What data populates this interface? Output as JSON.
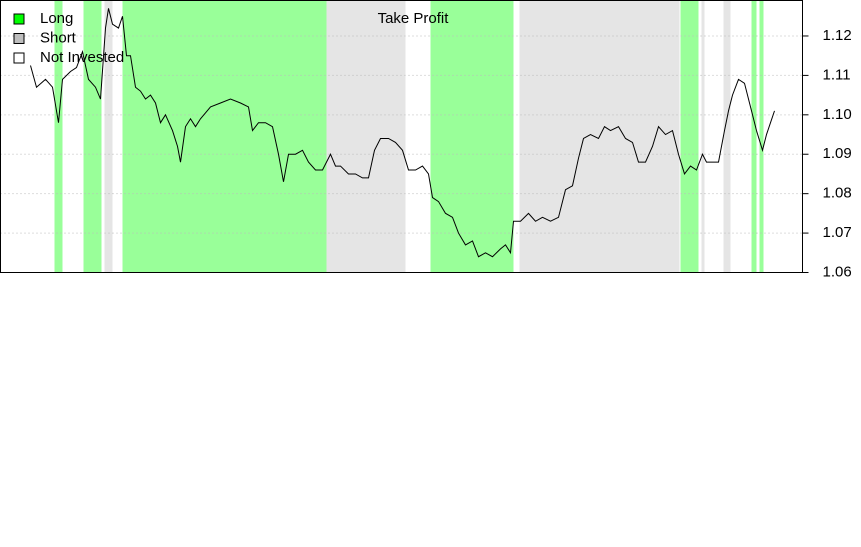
{
  "chart_data": {
    "type": "line",
    "annotation": "Take Profit",
    "legend": [
      {
        "name": "Long",
        "color": "#00ff00"
      },
      {
        "name": "Short",
        "color": "#bebebe"
      },
      {
        "name": "Not Invested",
        "color": "#ffffff"
      }
    ],
    "regions": [
      {
        "legend": 0,
        "start": 54,
        "end": 62
      },
      {
        "legend": 0,
        "start": 83,
        "end": 101
      },
      {
        "legend": 1,
        "start": 104,
        "end": 112
      },
      {
        "legend": 0,
        "start": 122,
        "end": 326
      },
      {
        "legend": 1,
        "start": 326,
        "end": 405
      },
      {
        "legend": 0,
        "start": 430,
        "end": 513
      },
      {
        "legend": 1,
        "start": 519,
        "end": 679
      },
      {
        "legend": 0,
        "start": 680,
        "end": 698
      },
      {
        "legend": 1,
        "start": 701,
        "end": 704
      },
      {
        "legend": 1,
        "start": 723,
        "end": 730
      },
      {
        "legend": 0,
        "start": 751,
        "end": 756
      },
      {
        "legend": 0,
        "start": 759,
        "end": 763
      }
    ],
    "x": [
      30,
      36,
      45,
      52,
      58,
      62,
      70,
      76,
      82,
      88,
      95,
      100,
      105,
      108,
      112,
      118,
      122,
      126,
      130,
      135,
      140,
      145,
      150,
      155,
      160,
      165,
      172,
      177,
      180,
      185,
      190,
      195,
      200,
      210,
      220,
      230,
      240,
      248,
      252,
      258,
      265,
      272,
      278,
      283,
      288,
      295,
      302,
      308,
      315,
      322,
      330,
      335,
      340,
      348,
      355,
      362,
      368,
      374,
      380,
      388,
      395,
      402,
      408,
      415,
      422,
      428,
      432,
      438,
      445,
      452,
      458,
      465,
      472,
      478,
      485,
      492,
      500,
      505,
      510,
      513,
      520,
      528,
      535,
      542,
      550,
      558,
      565,
      572,
      578,
      583,
      590,
      598,
      604,
      610,
      618,
      625,
      632,
      638,
      645,
      652,
      658,
      665,
      672,
      678,
      684,
      690,
      696,
      702,
      706,
      712,
      718,
      724,
      728,
      732,
      738,
      744,
      750,
      756,
      762,
      766,
      770,
      774
    ],
    "values": [
      1.1125,
      1.107,
      1.109,
      1.107,
      1.098,
      1.109,
      1.111,
      1.112,
      1.116,
      1.109,
      1.107,
      1.104,
      1.122,
      1.127,
      1.123,
      1.122,
      1.125,
      1.115,
      1.115,
      1.107,
      1.106,
      1.104,
      1.105,
      1.103,
      1.098,
      1.1,
      1.096,
      1.092,
      1.088,
      1.097,
      1.099,
      1.097,
      1.099,
      1.102,
      1.103,
      1.104,
      1.103,
      1.102,
      1.096,
      1.098,
      1.098,
      1.097,
      1.09,
      1.083,
      1.09,
      1.09,
      1.091,
      1.088,
      1.086,
      1.086,
      1.09,
      1.087,
      1.087,
      1.085,
      1.085,
      1.084,
      1.084,
      1.091,
      1.094,
      1.094,
      1.093,
      1.091,
      1.086,
      1.086,
      1.087,
      1.085,
      1.079,
      1.078,
      1.075,
      1.074,
      1.07,
      1.067,
      1.068,
      1.064,
      1.065,
      1.064,
      1.066,
      1.067,
      1.065,
      1.073,
      1.073,
      1.075,
      1.073,
      1.074,
      1.073,
      1.074,
      1.081,
      1.082,
      1.089,
      1.094,
      1.095,
      1.094,
      1.097,
      1.096,
      1.097,
      1.094,
      1.093,
      1.088,
      1.088,
      1.092,
      1.097,
      1.095,
      1.096,
      1.09,
      1.085,
      1.087,
      1.086,
      1.09,
      1.088,
      1.088,
      1.088,
      1.096,
      1.101,
      1.105,
      1.109,
      1.108,
      1.102,
      1.096,
      1.091,
      1.095,
      1.098,
      1.101
    ],
    "color": "#000000",
    "xlim": [
      0,
      802
    ],
    "ylim": [
      1.06,
      1.129
    ],
    "yticks": [
      1.06,
      1.07,
      1.08,
      1.09,
      {
        "value": 1.1,
        "label": "1.10"
      },
      1.11,
      1.12
    ],
    "grid": true
  }
}
